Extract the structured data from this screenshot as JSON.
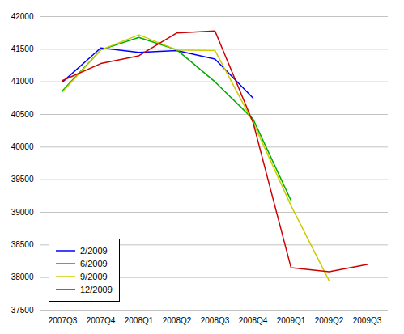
{
  "chart_data": {
    "type": "line",
    "categories": [
      "2007Q3",
      "2007Q4",
      "2008Q1",
      "2008Q2",
      "2008Q3",
      "2008Q4",
      "2009Q1",
      "2009Q2",
      "2009Q3"
    ],
    "series": [
      {
        "name": "2/2009",
        "color": "#0000ff",
        "values": [
          41000,
          41520,
          41450,
          41480,
          41350,
          40750,
          null,
          null,
          null
        ]
      },
      {
        "name": "6/2009",
        "color": "#00aa00",
        "values": [
          40870,
          41490,
          41680,
          41490,
          41000,
          40430,
          39180,
          null,
          null
        ]
      },
      {
        "name": "9/2009",
        "color": "#cccc00",
        "values": [
          40850,
          41490,
          41720,
          41490,
          41480,
          40380,
          39100,
          37950,
          null
        ]
      },
      {
        "name": "12/2009",
        "color": "#cc0000",
        "values": [
          41020,
          41280,
          41400,
          41750,
          41780,
          40380,
          38150,
          38090,
          38200
        ]
      }
    ],
    "ylim": [
      37500,
      42000
    ],
    "yticks": [
      37500,
      38000,
      38500,
      39000,
      39500,
      40000,
      40500,
      41000,
      41500,
      42000
    ],
    "grid": true,
    "legend": "lower left"
  }
}
